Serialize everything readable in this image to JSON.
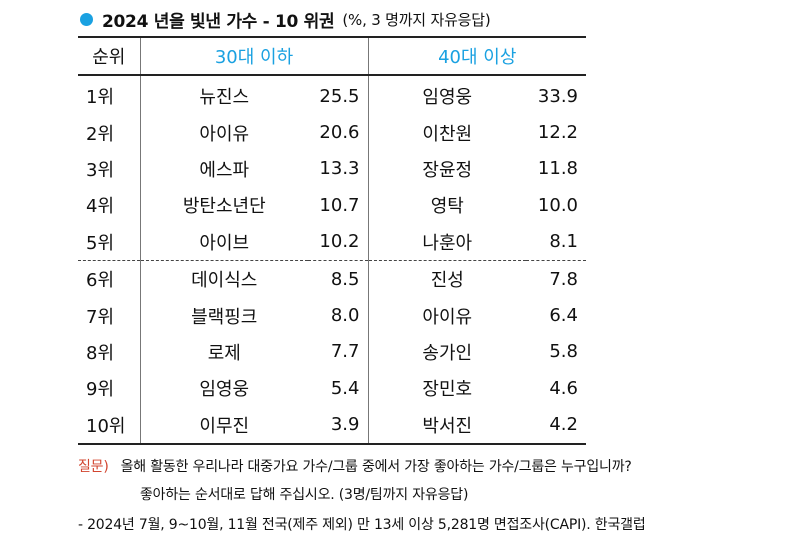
{
  "header": {
    "title": "2024 년을 빛낸 가수 - 10 위권",
    "subtitle": "(%, 3 명까지  자유응답)"
  },
  "table": {
    "rank_header": "순위",
    "group_a": "30대 이하",
    "group_b": "40대 이상",
    "rows": [
      {
        "rank": "1위",
        "a_name": "뉴진스",
        "a_val": "25.5",
        "b_name": "임영웅",
        "b_val": "33.9"
      },
      {
        "rank": "2위",
        "a_name": "아이유",
        "a_val": "20.6",
        "b_name": "이찬원",
        "b_val": "12.2"
      },
      {
        "rank": "3위",
        "a_name": "에스파",
        "a_val": "13.3",
        "b_name": "장윤정",
        "b_val": "11.8"
      },
      {
        "rank": "4위",
        "a_name": "방탄소년단",
        "a_val": "10.7",
        "b_name": "영탁",
        "b_val": "10.0"
      },
      {
        "rank": "5위",
        "a_name": "아이브",
        "a_val": "10.2",
        "b_name": "나훈아",
        "b_val": "8.1"
      },
      {
        "rank": "6위",
        "a_name": "데이식스",
        "a_val": "8.5",
        "b_name": "진성",
        "b_val": "7.8"
      },
      {
        "rank": "7위",
        "a_name": "블랙핑크",
        "a_val": "8.0",
        "b_name": "아이유",
        "b_val": "6.4"
      },
      {
        "rank": "8위",
        "a_name": "로제",
        "a_val": "7.7",
        "b_name": "송가인",
        "b_val": "5.8"
      },
      {
        "rank": "9위",
        "a_name": "임영웅",
        "a_val": "5.4",
        "b_name": "장민호",
        "b_val": "4.6"
      },
      {
        "rank": "10위",
        "a_name": "이무진",
        "a_val": "3.9",
        "b_name": "박서진",
        "b_val": "4.2"
      }
    ]
  },
  "footnote": {
    "question_label": "질문)",
    "question_line1": "올해 활동한 우리나라 대중가요 가수/그룹 중에서 가장 좋아하는 가수/그룹은 누구입니까?",
    "question_line2": "좋아하는 순서대로 답해 주십시오. (3명/팀까지 자유응답)",
    "source": "- 2024년 7월, 9~10월, 11월 전국(제주 제외) 만 13세 이상 5,281명 면접조사(CAPI). 한국갤럽"
  },
  "colors": {
    "accent": "#1aa1e1",
    "question_label": "#d2452f"
  }
}
